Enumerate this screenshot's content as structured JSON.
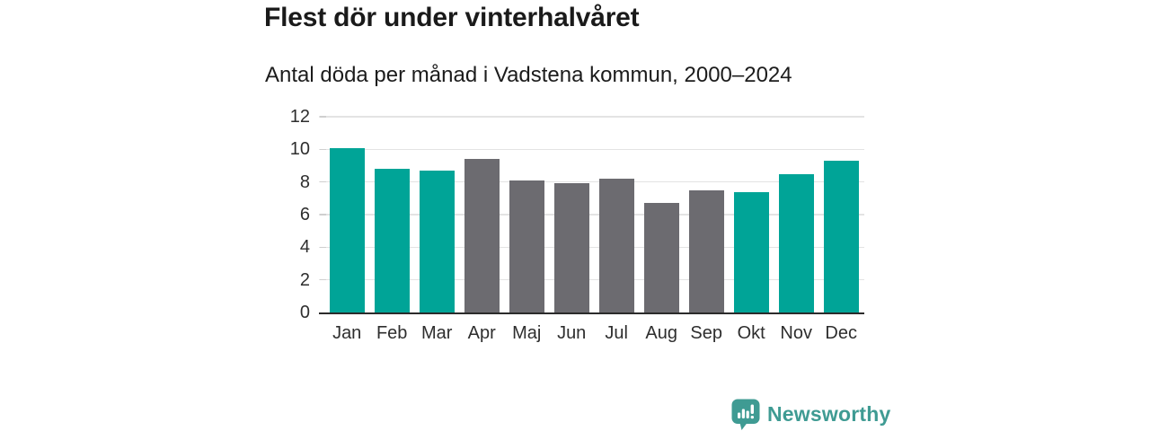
{
  "header": {
    "title": "Flest dör under vinterhalvåret",
    "subtitle": "Antal döda per månad i Vadstena kommun, 2000–2024"
  },
  "chart_data": {
    "type": "bar",
    "title": "Flest dör under vinterhalvåret",
    "subtitle": "Antal döda per månad i Vadstena kommun, 2000–2024",
    "categories": [
      "Jan",
      "Feb",
      "Mar",
      "Apr",
      "Maj",
      "Jun",
      "Jul",
      "Aug",
      "Sep",
      "Okt",
      "Nov",
      "Dec"
    ],
    "values": [
      10.1,
      8.8,
      8.7,
      9.4,
      8.1,
      7.9,
      8.2,
      6.7,
      7.5,
      7.4,
      8.5,
      9.3
    ],
    "bar_colors": [
      "teal",
      "teal",
      "teal",
      "gray",
      "gray",
      "gray",
      "gray",
      "gray",
      "gray",
      "teal",
      "teal",
      "teal"
    ],
    "xlabel": "",
    "ylabel": "",
    "ylim": [
      0,
      12
    ],
    "yticks": [
      0,
      2,
      4,
      6,
      8,
      10,
      12
    ],
    "grid": true,
    "legend": "none"
  },
  "colors": {
    "bar_teal": "#00a497",
    "bar_gray": "#6c6b70",
    "logo_teal": "#3f9b93",
    "gridline": "#e3e3e3",
    "axis_line": "#2b2b2b",
    "title_text": "#1a1a1a"
  },
  "footer": {
    "brand": "Newsworthy",
    "logo_icon": "bar-chart-speech-bubble-icon"
  }
}
